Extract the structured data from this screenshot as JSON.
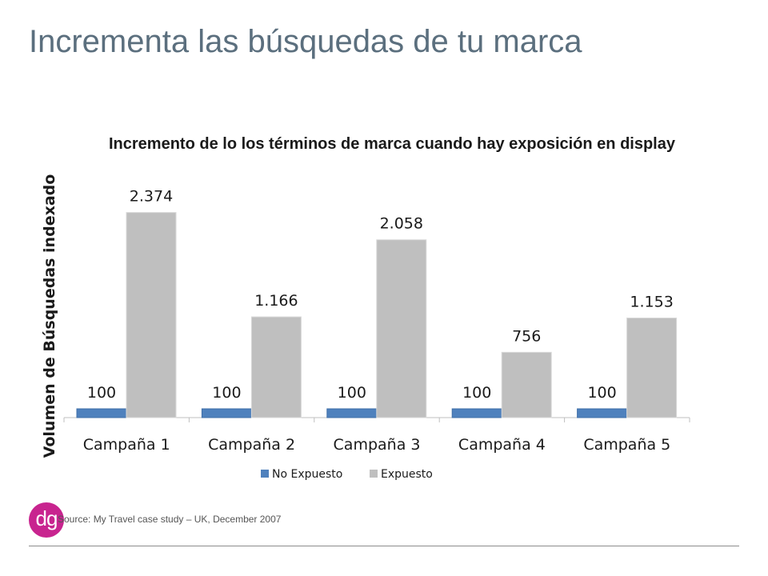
{
  "slide": {
    "title": "Incrementa las búsquedas de tu marca",
    "source": "Source: My Travel case study – UK, December 2007",
    "logo_text": "dg"
  },
  "colors": {
    "no_expuesto": "#4f81bd",
    "expuesto": "#bfbfbf",
    "logo": "#c8248f",
    "title": "#5b6f7e"
  },
  "chart_data": {
    "type": "bar",
    "title": "Incremento de lo los términos de marca cuando hay exposición en display",
    "ylabel": "Volumen de Búsquedas indexado",
    "xlabel": "",
    "categories": [
      "Campaña 1",
      "Campaña 2",
      "Campaña 3",
      "Campaña 4",
      "Campaña 5"
    ],
    "series": [
      {
        "name": "No Expuesto",
        "values": [
          100,
          100,
          100,
          100,
          100
        ],
        "labels": [
          "100",
          "100",
          "100",
          "100",
          "100"
        ]
      },
      {
        "name": "Expuesto",
        "values": [
          2374,
          1166,
          2058,
          756,
          1153
        ],
        "labels": [
          "2.374",
          "1.166",
          "2.058",
          "756",
          "1.153"
        ]
      }
    ],
    "ylim": [
      0,
      2500
    ],
    "grid": false,
    "legend": "bottom"
  }
}
